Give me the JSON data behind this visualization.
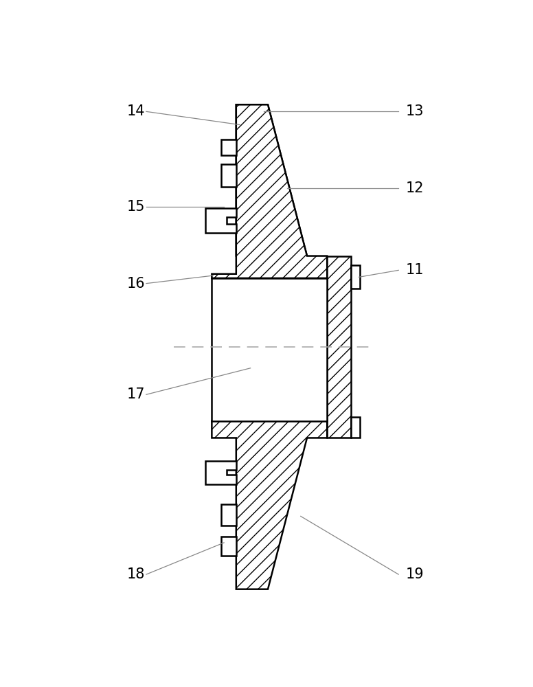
{
  "bg_color": "#ffffff",
  "line_color": "#000000",
  "ann_color": "#888888",
  "label_color": "#000000",
  "label_fontsize": 15,
  "ann_lw": 0.9,
  "draw_lw": 1.8
}
